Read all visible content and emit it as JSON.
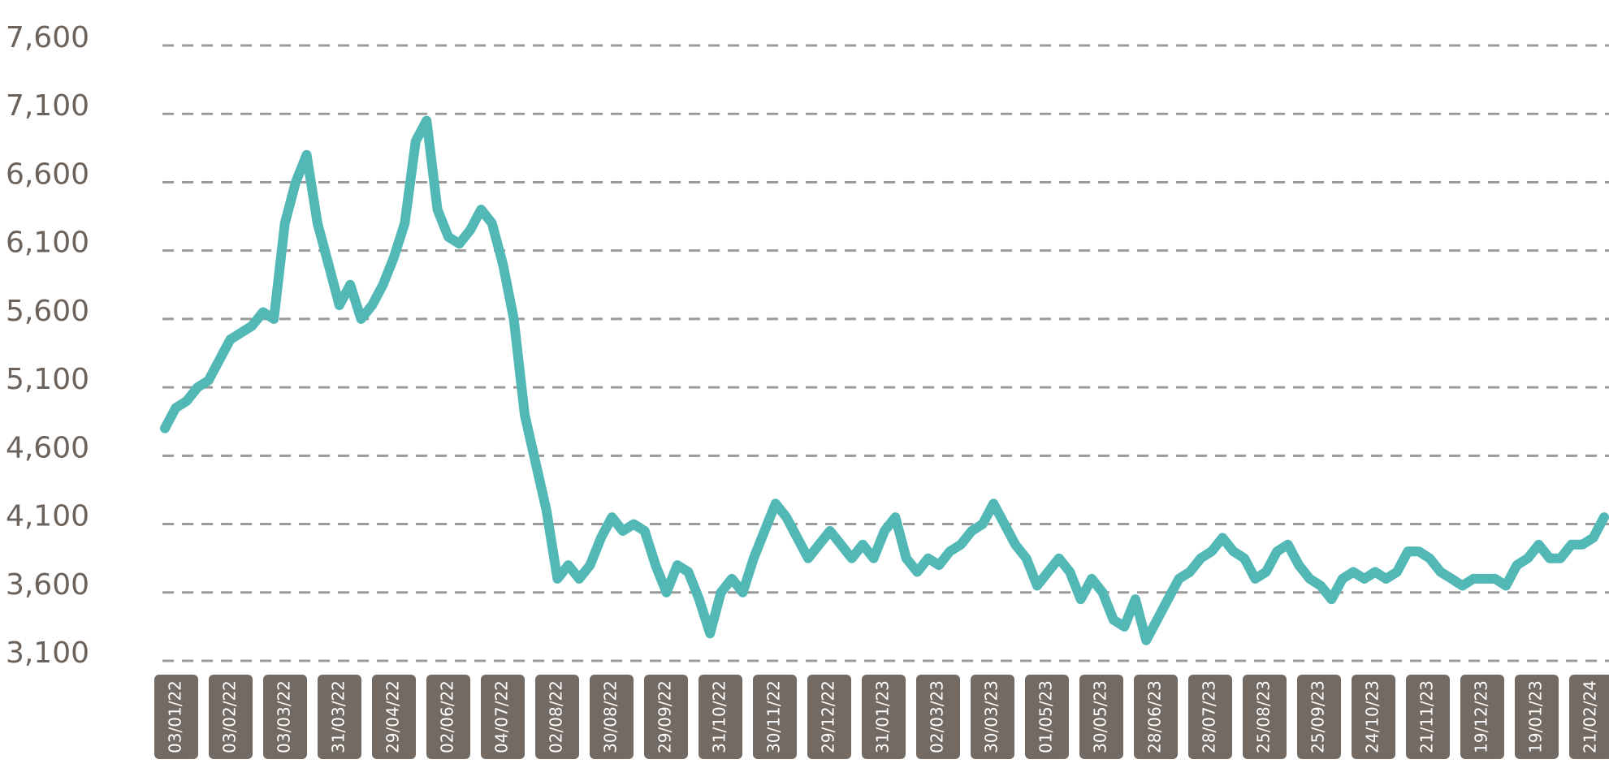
{
  "chart_data": {
    "type": "line",
    "title": "",
    "xlabel": "",
    "ylabel": "",
    "ylim": [
      3100,
      7600
    ],
    "yticks": [
      3100,
      3600,
      4100,
      4600,
      5100,
      5600,
      6100,
      6600,
      7100,
      7600
    ],
    "ytick_labels": [
      "3,100",
      "3,600",
      "4,100",
      "4,600",
      "5,100",
      "5,600",
      "6,100",
      "6,600",
      "7,100",
      "7,600"
    ],
    "xtick_labels": [
      "03/01/22",
      "03/02/22",
      "03/03/22",
      "31/03/22",
      "29/04/22",
      "02/06/22",
      "04/07/22",
      "02/08/22",
      "30/08/22",
      "29/09/22",
      "31/10/22",
      "30/11/22",
      "29/12/22",
      "31/01/23",
      "02/03/23",
      "30/03/23",
      "01/05/23",
      "30/05/23",
      "28/06/23",
      "28/07/23",
      "25/08/23",
      "25/09/23",
      "24/10/23",
      "21/11/23",
      "19/12/23",
      "19/01/23",
      "21/02/24"
    ],
    "grid": true,
    "legend": "none",
    "colors": {
      "line": "#52b8b6",
      "grid": "#9a9a9a",
      "tick_box": "#736a63",
      "axis_text": "#6b625c"
    },
    "series": [
      {
        "values": [
          4800,
          4950,
          5000,
          5100,
          5150,
          5300,
          5450,
          5500,
          5550,
          5650,
          5600,
          6300,
          6600,
          6800,
          6300,
          6000,
          5700,
          5850,
          5600,
          5700,
          5850,
          6050,
          6300,
          6900,
          7050,
          6400,
          6200,
          6150,
          6250,
          6400,
          6300,
          6000,
          5600,
          4900,
          4550,
          4200,
          3700,
          3800,
          3700,
          3800,
          4000,
          4150,
          4050,
          4100,
          4050,
          3800,
          3600,
          3800,
          3750,
          3550,
          3300,
          3600,
          3700,
          3600,
          3850,
          4050,
          4250,
          4150,
          4000,
          3850,
          3950,
          4050,
          3950,
          3850,
          3950,
          3850,
          4050,
          4150,
          3850,
          3750,
          3850,
          3800,
          3900,
          3950,
          4050,
          4100,
          4250,
          4100,
          3950,
          3850,
          3650,
          3750,
          3850,
          3750,
          3550,
          3700,
          3600,
          3400,
          3350,
          3550,
          3250,
          3400,
          3550,
          3700,
          3750,
          3850,
          3900,
          4000,
          3900,
          3850,
          3700,
          3750,
          3900,
          3950,
          3800,
          3700,
          3650,
          3550,
          3700,
          3750,
          3700,
          3750,
          3700,
          3750,
          3900,
          3900,
          3850,
          3750,
          3700,
          3650,
          3700,
          3700,
          3700,
          3650,
          3800,
          3850,
          3950,
          3850,
          3850,
          3950,
          3950,
          4000,
          4150
        ]
      }
    ]
  }
}
